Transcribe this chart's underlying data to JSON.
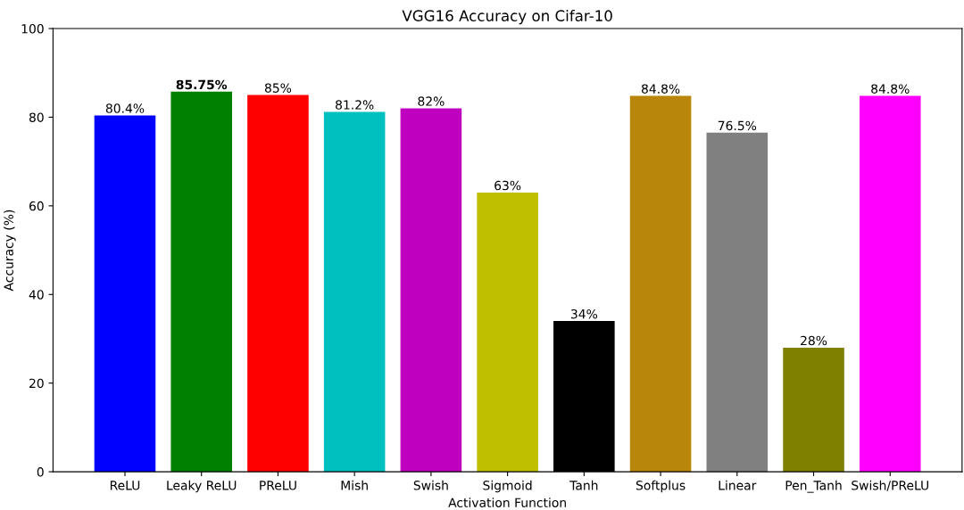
{
  "chart_data": {
    "type": "bar",
    "title": "VGG16 Accuracy on Cifar-10",
    "xlabel": "Activation Function",
    "ylabel": "Accuracy (%)",
    "categories": [
      "ReLU",
      "Leaky ReLU",
      "PReLU",
      "Mish",
      "Swish",
      "Sigmoid",
      "Tanh",
      "Softplus",
      "Linear",
      "Pen_Tanh",
      "Swish/PReLU"
    ],
    "values": [
      80.4,
      85.75,
      85,
      81.2,
      82,
      63,
      34,
      84.8,
      76.5,
      28,
      84.8
    ],
    "value_labels": [
      "80.4%",
      "85.75%",
      "85%",
      "81.2%",
      "82%",
      "63%",
      "34%",
      "84.8%",
      "76.5%",
      "28%",
      "84.8%"
    ],
    "colors": [
      "#0000ff",
      "#008000",
      "#ff0000",
      "#00bfbf",
      "#bf00bf",
      "#bfbf00",
      "#000000",
      "#b8860b",
      "#808080",
      "#808000",
      "#ff00ff"
    ],
    "ylim": [
      0,
      100
    ],
    "yticks": [
      0,
      20,
      40,
      60,
      80,
      100
    ],
    "grid": false
  }
}
